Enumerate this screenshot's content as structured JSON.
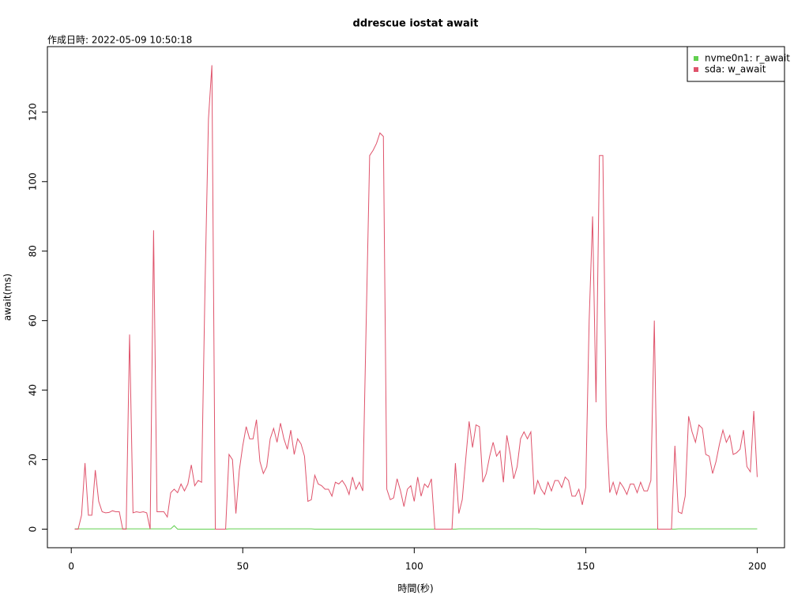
{
  "chart_data": {
    "type": "line",
    "title": "ddrescue iostat await",
    "subtitle": "作成日時: 2022-05-09 10:50:18",
    "xlabel": "時間(秒)",
    "ylabel": "await(ms)",
    "x": [
      1,
      2,
      3,
      4,
      5,
      6,
      7,
      8,
      9,
      10,
      11,
      12,
      13,
      14,
      15,
      16,
      17,
      18,
      19,
      20,
      21,
      22,
      23,
      24,
      25,
      26,
      27,
      28,
      29,
      30,
      31,
      32,
      33,
      34,
      35,
      36,
      37,
      38,
      39,
      40,
      41,
      42,
      43,
      44,
      45,
      46,
      47,
      48,
      49,
      50,
      51,
      52,
      53,
      54,
      55,
      56,
      57,
      58,
      59,
      60,
      61,
      62,
      63,
      64,
      65,
      66,
      67,
      68,
      69,
      70,
      71,
      72,
      73,
      74,
      75,
      76,
      77,
      78,
      79,
      80,
      81,
      82,
      83,
      84,
      85,
      86,
      87,
      88,
      89,
      90,
      91,
      92,
      93,
      94,
      95,
      96,
      97,
      98,
      99,
      100,
      101,
      102,
      103,
      104,
      105,
      106,
      107,
      108,
      109,
      110,
      111,
      112,
      113,
      114,
      115,
      116,
      117,
      118,
      119,
      120,
      121,
      122,
      123,
      124,
      125,
      126,
      127,
      128,
      129,
      130,
      131,
      132,
      133,
      134,
      135,
      136,
      137,
      138,
      139,
      140,
      141,
      142,
      143,
      144,
      145,
      146,
      147,
      148,
      149,
      150,
      151,
      152,
      153,
      154,
      155,
      156,
      157,
      158,
      159,
      160,
      161,
      162,
      163,
      164,
      165,
      166,
      167,
      168,
      169,
      170,
      171,
      172,
      173,
      174,
      175,
      176,
      177,
      178,
      179,
      180,
      181,
      182,
      183,
      184,
      185,
      186,
      187,
      188,
      189,
      190,
      191,
      192,
      193,
      194,
      195,
      196,
      197,
      198,
      199,
      200
    ],
    "series": [
      {
        "name": "nvme0n1: r_await",
        "color": "#61D04F",
        "values": [
          0.1,
          0.1,
          0.1,
          0.1,
          0.1,
          0.1,
          0.1,
          0.1,
          0.1,
          0.1,
          0.1,
          0.1,
          0.1,
          0.1,
          0.1,
          0.1,
          0.1,
          0.1,
          0.1,
          0.1,
          0.1,
          0.1,
          0.1,
          0.1,
          0.1,
          0.1,
          0.1,
          0.1,
          0.1,
          1,
          0,
          0,
          0,
          0,
          0,
          0,
          0,
          0,
          0,
          0,
          0,
          0,
          0,
          0,
          0,
          0.1,
          0.1,
          0.1,
          0.1,
          0.1,
          0.1,
          0.1,
          0.1,
          0.1,
          0.1,
          0.1,
          0.1,
          0.1,
          0.1,
          0.1,
          0.1,
          0.1,
          0.1,
          0.1,
          0.1,
          0.1,
          0.1,
          0.1,
          0.1,
          0.1,
          0,
          0,
          0,
          0,
          0,
          0,
          0,
          0,
          0,
          0,
          0,
          0,
          0,
          0,
          0,
          0,
          0,
          0,
          0,
          0,
          0,
          0,
          0,
          0,
          0,
          0,
          0,
          0,
          0,
          0,
          0,
          0,
          0,
          0,
          0,
          0,
          0,
          0,
          0,
          0,
          0,
          0,
          0.1,
          0.1,
          0.1,
          0.1,
          0.1,
          0.1,
          0.1,
          0.1,
          0.1,
          0.1,
          0.1,
          0.1,
          0.1,
          0.1,
          0.1,
          0.1,
          0.1,
          0.1,
          0.1,
          0.1,
          0.1,
          0.1,
          0.1,
          0.1,
          0,
          0,
          0,
          0,
          0,
          0,
          0,
          0,
          0,
          0,
          0,
          0,
          0,
          0,
          0,
          0,
          0,
          0,
          0,
          0,
          0,
          0,
          0,
          0,
          0,
          0,
          0,
          0,
          0,
          0,
          0,
          0,
          0,
          0,
          0,
          0,
          0,
          0,
          0,
          0,
          0.1,
          0.1,
          0.1,
          0.1,
          0.1,
          0.1,
          0.1,
          0.1,
          0.1,
          0.1,
          0.1,
          0.1,
          0.1,
          0.1,
          0.1,
          0.1,
          0.1,
          0.1,
          0.1,
          0.1,
          0.1,
          0.1,
          0.1,
          0.1
        ]
      },
      {
        "name": "sda: w_await",
        "color": "#DF536B",
        "values": [
          0,
          0,
          4,
          19,
          4,
          4,
          17,
          8,
          5,
          4.7,
          4.8,
          5.3,
          5,
          5,
          0,
          0,
          56,
          4.7,
          5,
          4.8,
          5,
          4.7,
          0,
          86,
          5,
          5,
          5,
          3.5,
          10.5,
          11.5,
          10.5,
          13,
          11,
          13,
          18.5,
          12.5,
          14,
          13.5,
          70,
          118,
          133.5,
          0,
          0,
          0,
          0,
          21.5,
          20,
          4.5,
          17,
          24,
          29.5,
          26,
          26,
          31.5,
          19.5,
          16,
          18,
          26,
          29,
          25,
          30.5,
          26,
          23,
          28.5,
          21.5,
          26,
          24.5,
          21,
          8,
          8.5,
          15.5,
          13,
          12.5,
          11.5,
          11.5,
          9.5,
          13.5,
          13,
          14,
          12.5,
          10,
          15,
          11.5,
          13.5,
          11,
          60,
          107.5,
          109,
          111,
          114,
          113,
          11.5,
          8.5,
          9,
          14.5,
          11,
          6.5,
          11.5,
          12.5,
          8,
          15,
          9.5,
          13,
          12,
          14.5,
          0,
          0,
          0,
          0,
          0,
          0,
          19,
          4.5,
          8.5,
          20,
          31,
          23.5,
          30,
          29.5,
          13.5,
          16,
          21,
          25,
          21,
          22.5,
          13.5,
          27,
          21.5,
          14.5,
          18,
          26,
          28,
          26,
          28,
          10,
          14,
          11.5,
          10,
          13.5,
          11,
          14,
          14,
          12,
          15,
          14,
          9.5,
          9.5,
          11.5,
          7,
          12,
          60,
          90,
          36.5,
          107.5,
          107.5,
          30,
          10.5,
          13.5,
          10,
          13.5,
          12,
          10,
          13,
          13,
          10.5,
          13.5,
          11,
          11,
          14,
          60,
          0,
          0,
          0,
          0,
          0,
          24,
          5,
          4.5,
          9.5,
          32.5,
          28,
          25,
          30,
          29,
          21.5,
          21,
          16,
          19.5,
          24.5,
          28.5,
          25,
          27,
          21.5,
          22,
          23,
          28.5,
          18,
          16.5,
          34,
          15
        ]
      }
    ],
    "xlim": [
      -6.96,
      207.96
    ],
    "ylim": [
      -5.34,
      138.84
    ],
    "xticks": [
      0,
      50,
      100,
      150,
      200
    ],
    "yticks": [
      0,
      20,
      40,
      60,
      80,
      100,
      120
    ],
    "legend": "top-right"
  }
}
